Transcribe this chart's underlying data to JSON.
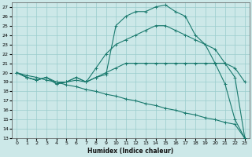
{
  "xlabel": "Humidex (Indice chaleur)",
  "xlim": [
    -0.5,
    23.5
  ],
  "ylim": [
    13,
    27.5
  ],
  "xticks": [
    0,
    1,
    2,
    3,
    4,
    5,
    6,
    7,
    8,
    9,
    10,
    11,
    12,
    13,
    14,
    15,
    16,
    17,
    18,
    19,
    20,
    21,
    22,
    23
  ],
  "yticks": [
    13,
    14,
    15,
    16,
    17,
    18,
    19,
    20,
    21,
    22,
    23,
    24,
    25,
    26,
    27
  ],
  "bg_color": "#cce8e8",
  "line_color": "#1a7a6e",
  "grid_color": "#99cccc",
  "lines": [
    {
      "x": [
        0,
        1,
        2,
        3,
        4,
        5,
        6,
        7,
        8,
        9,
        10,
        11,
        12,
        13,
        14,
        15,
        16,
        17,
        18,
        19,
        20,
        21,
        22,
        23
      ],
      "y": [
        20,
        19.5,
        19.2,
        19.5,
        18.8,
        19,
        19.5,
        19,
        19.5,
        19.8,
        25,
        26,
        26.5,
        26.5,
        27,
        27.2,
        26.5,
        26,
        24,
        23,
        21,
        18.8,
        15,
        13
      ]
    },
    {
      "x": [
        0,
        1,
        2,
        3,
        4,
        5,
        6,
        7,
        8,
        9,
        10,
        11,
        12,
        13,
        14,
        15,
        16,
        17,
        18,
        19,
        20,
        21,
        22,
        23
      ],
      "y": [
        20,
        19.5,
        19.2,
        19.5,
        19,
        19,
        19.2,
        19,
        19.5,
        20,
        20.5,
        21,
        21,
        21,
        21,
        21,
        21,
        21,
        21,
        21,
        21,
        21,
        20.5,
        19
      ]
    },
    {
      "x": [
        0,
        1,
        2,
        3,
        4,
        5,
        6,
        7,
        8,
        9,
        10,
        11,
        12,
        13,
        14,
        15,
        16,
        17,
        18,
        19,
        20,
        21,
        22,
        23
      ],
      "y": [
        20,
        19.5,
        19.2,
        19.5,
        18.8,
        19,
        19.5,
        19,
        20.5,
        22,
        23,
        23.5,
        24,
        24.5,
        25,
        25,
        24.5,
        24,
        23.5,
        23,
        22.5,
        21,
        19.5,
        13
      ]
    },
    {
      "x": [
        0,
        1,
        2,
        3,
        4,
        5,
        6,
        7,
        8,
        9,
        10,
        11,
        12,
        13,
        14,
        15,
        16,
        17,
        18,
        19,
        20,
        21,
        22,
        23
      ],
      "y": [
        20,
        19.7,
        19.5,
        19.2,
        19,
        18.7,
        18.5,
        18.2,
        18,
        17.7,
        17.5,
        17.2,
        17,
        16.7,
        16.5,
        16.2,
        16,
        15.7,
        15.5,
        15.2,
        15,
        14.7,
        14.5,
        13
      ]
    }
  ]
}
